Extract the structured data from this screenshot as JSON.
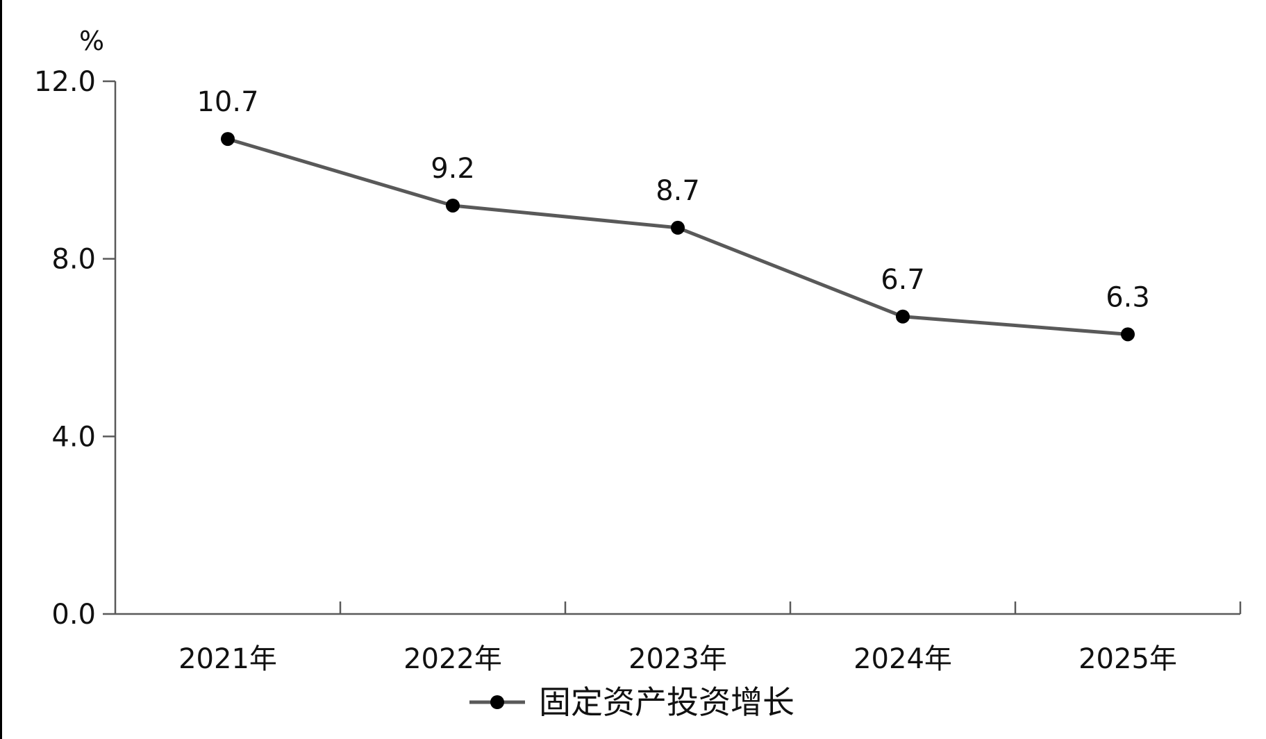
{
  "chart_data": {
    "type": "line",
    "categories": [
      "2021年",
      "2022年",
      "2023年",
      "2024年",
      "2025年"
    ],
    "series": [
      {
        "name": "固定资产投资增长",
        "values": [
          10.7,
          9.2,
          8.7,
          6.7,
          6.3
        ],
        "data_labels": [
          "10.7",
          "9.2",
          "8.7",
          "6.7",
          "6.3"
        ],
        "color": "#595959",
        "marker": "circle",
        "marker_color": "#000000"
      }
    ],
    "ylabel": "%",
    "ylim": [
      0,
      12
    ],
    "yticks": [
      0,
      4,
      8,
      12
    ],
    "ytick_labels": [
      "0.0",
      "4.0",
      "8.0",
      "12.0"
    ],
    "grid": false,
    "legend_position": "bottom",
    "axis_color": "#595959"
  }
}
